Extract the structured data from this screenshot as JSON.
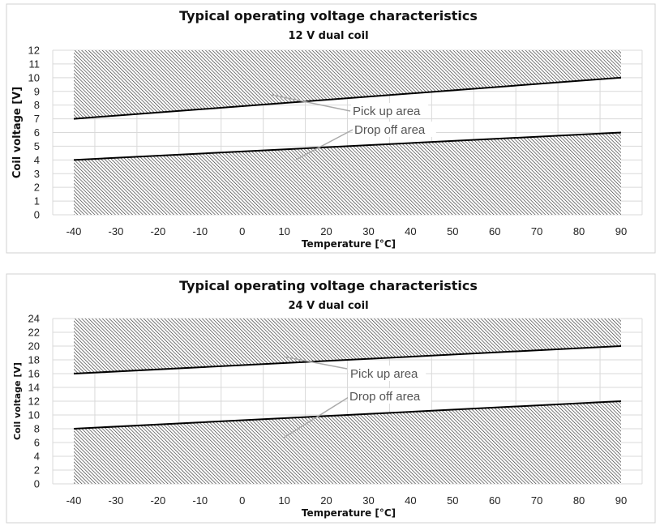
{
  "chart_data": [
    {
      "type": "area",
      "title": "Typical operating voltage characteristics",
      "subtitle": "12 V dual coil",
      "xlabel": "Temperature [°C]",
      "ylabel": "Coil voltage [V]",
      "x_ticks": [
        "-40",
        "-30",
        "-20",
        "-10",
        "0",
        "10",
        "20",
        "30",
        "40",
        "50",
        "60",
        "70",
        "80",
        "90"
      ],
      "y_ticks": [
        "0",
        "1",
        "2",
        "3",
        "4",
        "5",
        "6",
        "7",
        "8",
        "9",
        "10",
        "11",
        "12"
      ],
      "xlim": [
        -40,
        90
      ],
      "ylim": [
        0,
        12
      ],
      "grid": true,
      "series": [
        {
          "name": "Pick up area",
          "x": [
            -40,
            90
          ],
          "y": [
            7,
            10
          ],
          "fill": "above"
        },
        {
          "name": "Drop off area",
          "x": [
            -40,
            90
          ],
          "y": [
            4,
            6
          ],
          "fill": "below"
        }
      ]
    },
    {
      "type": "area",
      "title": "Typical operating voltage characteristics",
      "subtitle": "24 V dual coil",
      "xlabel": "Temperature [°C]",
      "ylabel": "Coil voltage [V]",
      "x_ticks": [
        "-40",
        "-30",
        "-20",
        "-10",
        "0",
        "10",
        "20",
        "30",
        "40",
        "50",
        "60",
        "70",
        "80",
        "90"
      ],
      "y_ticks": [
        "0",
        "2",
        "4",
        "6",
        "8",
        "10",
        "12",
        "14",
        "16",
        "18",
        "20",
        "22",
        "24"
      ],
      "xlim": [
        -40,
        90
      ],
      "ylim": [
        0,
        24
      ],
      "grid": true,
      "series": [
        {
          "name": "Pick up area",
          "x": [
            -40,
            90
          ],
          "y": [
            16,
            20
          ],
          "fill": "above"
        },
        {
          "name": "Drop off area",
          "x": [
            -40,
            90
          ],
          "y": [
            8,
            12
          ],
          "fill": "below"
        }
      ]
    }
  ],
  "colors": {
    "line": "#000000",
    "hatch": "#333333",
    "grid": "#d9d9d9",
    "annotation": "#555555"
  }
}
